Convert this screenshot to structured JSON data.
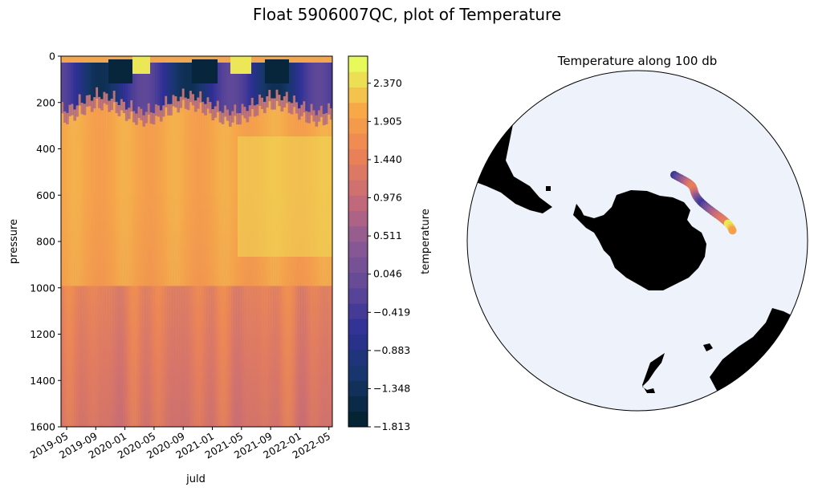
{
  "suptitle": "Float 5906007QC, plot of Temperature",
  "chart_data": [
    {
      "type": "heatmap",
      "title": "",
      "xlabel": "juld",
      "ylabel": "pressure",
      "x_ticks": [
        "2019-05",
        "2019-09",
        "2020-01",
        "2020-05",
        "2020-09",
        "2021-01",
        "2021-05",
        "2021-09",
        "2022-01",
        "2022-05"
      ],
      "y_ticks": [
        0,
        200,
        400,
        600,
        800,
        1000,
        1200,
        1400,
        1600
      ],
      "ylim": [
        1600,
        0
      ],
      "xlim": [
        "2019-04",
        "2022-05"
      ],
      "colorbar": {
        "label": "temperature",
        "ticks": [
          "2.370",
          "1.905",
          "1.440",
          "0.976",
          "0.511",
          "0.046",
          "−0.419",
          "−0.883",
          "−1.348",
          "−1.813"
        ],
        "range": [
          -1.813,
          2.7
        ],
        "colormap": "thermal"
      },
      "grid": false
    },
    {
      "type": "scatter",
      "title": "Temperature along 100 db",
      "projection": "south-polar-stereographic",
      "color_variable": "temperature at 100 db",
      "land_color": "#000000",
      "ocean_color": "#edf2fb"
    }
  ]
}
